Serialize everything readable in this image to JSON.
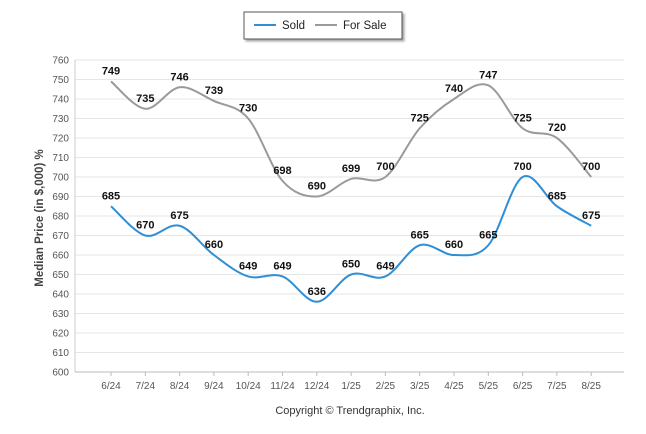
{
  "chart_data": {
    "type": "line",
    "title": "",
    "xlabel": "",
    "ylabel": "Median Price (in $,000) %",
    "categories": [
      "6/24",
      "7/24",
      "8/24",
      "9/24",
      "10/24",
      "11/24",
      "12/24",
      "1/25",
      "2/25",
      "3/25",
      "4/25",
      "5/25",
      "6/25",
      "7/25",
      "8/25"
    ],
    "series": [
      {
        "name": "Sold",
        "color": "#2f8fd6",
        "values": [
          685,
          670,
          675,
          660,
          649,
          649,
          636,
          650,
          649,
          665,
          660,
          665,
          700,
          685,
          675
        ]
      },
      {
        "name": "For Sale",
        "color": "#9a9a9a",
        "values": [
          749,
          735,
          746,
          739,
          730,
          698,
          690,
          699,
          700,
          725,
          740,
          747,
          725,
          720,
          700
        ]
      }
    ],
    "ylim": [
      600,
      760
    ],
    "yticks": [
      600,
      610,
      620,
      630,
      640,
      650,
      660,
      670,
      680,
      690,
      700,
      710,
      720,
      730,
      740,
      750,
      760
    ],
    "grid": true,
    "legend_position": "top-center",
    "footer": "Copyright © Trendgraphix, Inc."
  }
}
